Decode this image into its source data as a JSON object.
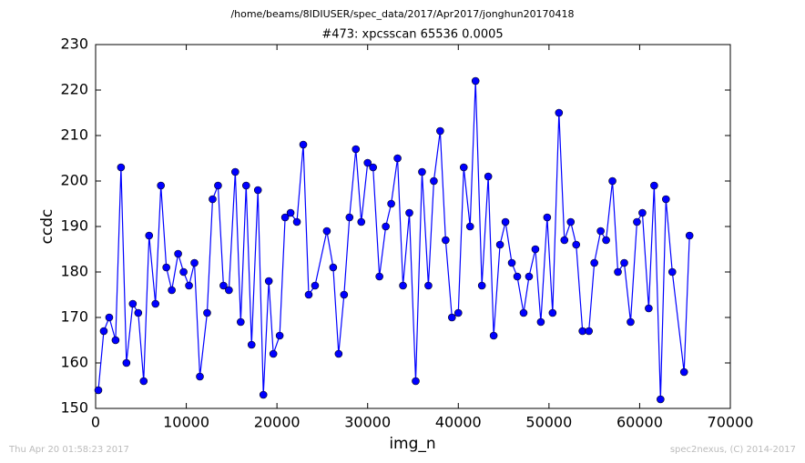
{
  "chart_data": {
    "type": "line",
    "suptitle": "/home/beams/8IDIUSER/spec_data/2017/Apr2017/jonghun20170418",
    "title": "#473: xpcsscan 65536 0.0005",
    "xlabel": "img_n",
    "ylabel": "ccdc",
    "footer_left": "Thu Apr 20 01:58:23 2017",
    "footer_right": "spec2nexus, (C) 2014-2017",
    "x": [
      300,
      900,
      1500,
      2200,
      2800,
      3400,
      4100,
      4700,
      5300,
      5900,
      6600,
      7200,
      7800,
      8400,
      9100,
      9700,
      10300,
      10900,
      11500,
      12300,
      12900,
      13500,
      14100,
      14700,
      15400,
      16000,
      16600,
      17200,
      17900,
      18500,
      19100,
      19600,
      20300,
      20900,
      21500,
      22200,
      22900,
      23500,
      24200,
      25500,
      26200,
      26800,
      27400,
      28000,
      28700,
      29300,
      30000,
      30600,
      31300,
      32000,
      32600,
      33300,
      33900,
      34600,
      35300,
      36000,
      36700,
      37300,
      38000,
      38600,
      39300,
      40000,
      40600,
      41300,
      41900,
      42600,
      43300,
      43900,
      44600,
      45200,
      45900,
      46500,
      47200,
      47800,
      48500,
      49100,
      49800,
      50400,
      51100,
      51700,
      52400,
      53000,
      53700,
      54400,
      55000,
      55700,
      56300,
      57000,
      57600,
      58300,
      59000,
      59700,
      60300,
      61000,
      61600,
      62300,
      62900,
      63600,
      64900,
      65500
    ],
    "series": [
      {
        "name": "ccdc",
        "color": "#0000ff",
        "values": [
          154,
          167,
          170,
          165,
          203,
          160,
          173,
          171,
          156,
          188,
          173,
          199,
          181,
          176,
          184,
          180,
          177,
          182,
          157,
          171,
          196,
          199,
          177,
          176,
          202,
          169,
          199,
          164,
          198,
          153,
          178,
          162,
          166,
          192,
          193,
          191,
          208,
          175,
          177,
          189,
          181,
          162,
          175,
          192,
          207,
          191,
          204,
          203,
          179,
          190,
          195,
          205,
          177,
          193,
          156,
          202,
          177,
          200,
          211,
          187,
          170,
          171,
          203,
          190,
          222,
          177,
          201,
          166,
          186,
          191,
          182,
          179,
          171,
          179,
          185,
          169,
          192,
          171,
          215,
          187,
          191,
          186,
          167,
          167,
          182,
          189,
          187,
          200,
          180,
          182,
          169,
          191,
          193,
          172,
          199,
          152,
          196,
          180,
          158,
          188
        ]
      }
    ],
    "xlim": [
      0,
      70000
    ],
    "xticks": [
      0,
      10000,
      20000,
      30000,
      40000,
      50000,
      60000,
      70000
    ],
    "ylim": [
      150,
      230
    ],
    "yticks": [
      150,
      160,
      170,
      180,
      190,
      200,
      210,
      220,
      230
    ]
  }
}
